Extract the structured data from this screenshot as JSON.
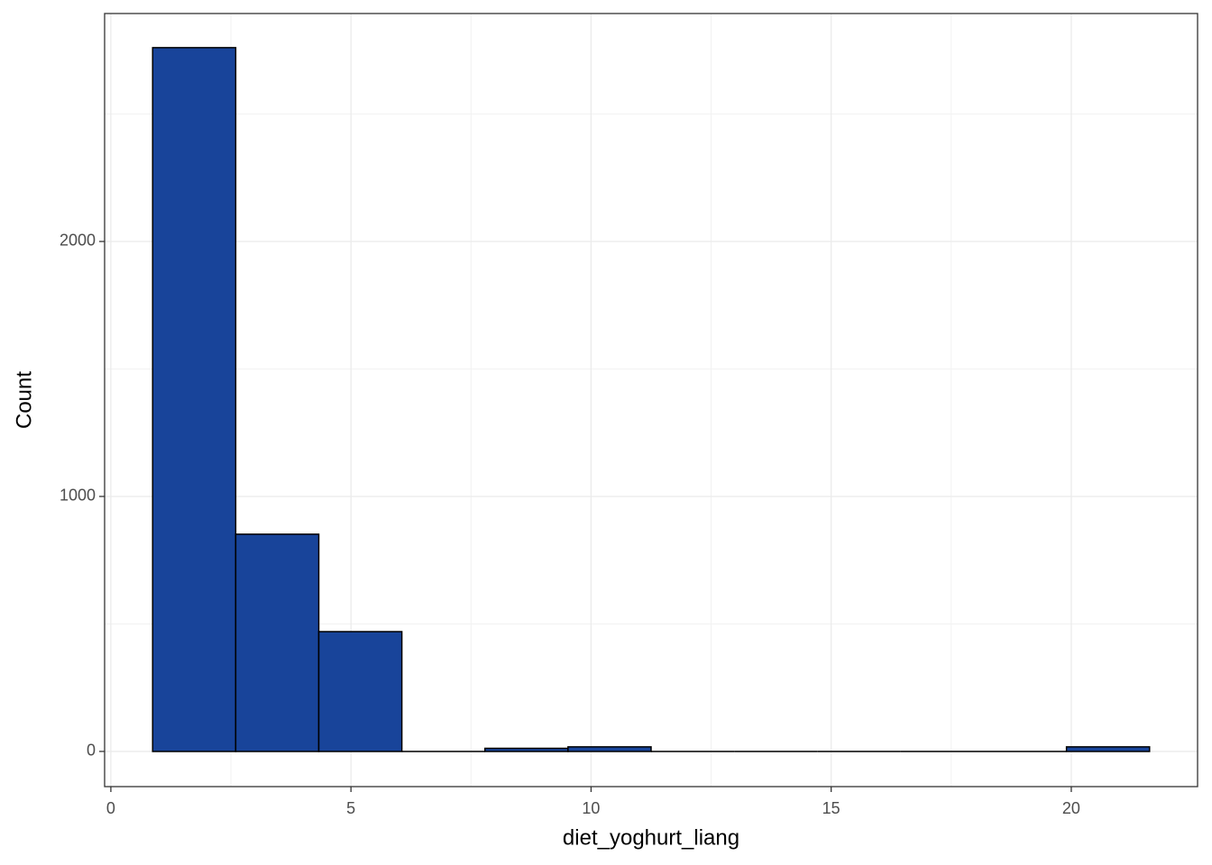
{
  "chart_data": {
    "type": "histogram",
    "x_label": "diet_yoghurt_liang",
    "y_label": "Count",
    "bins": [
      0.87,
      2.6,
      4.33,
      6.06,
      7.79,
      9.52,
      11.25,
      12.98,
      14.71,
      16.44,
      18.17,
      19.9,
      21.63
    ],
    "values": [
      2760,
      852,
      470,
      0,
      12,
      18,
      0,
      0,
      0,
      0,
      0,
      18
    ],
    "color": "#18449a",
    "xlim": [
      -0.13,
      22.63
    ],
    "ylim": [
      -138,
      2894
    ],
    "xticks": [
      0,
      5,
      10,
      15,
      20
    ],
    "yticks": [
      0,
      1000,
      2000
    ],
    "minor_xticks": [
      2.5,
      7.5,
      12.5,
      17.5
    ],
    "minor_yticks": [
      500,
      1500,
      2500
    ],
    "grid": true
  }
}
